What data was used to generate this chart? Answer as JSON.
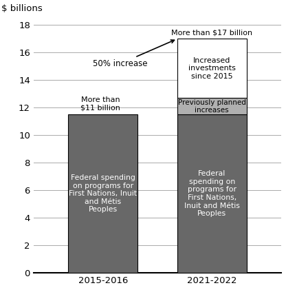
{
  "categories": [
    "2015-2016",
    "2021-2022"
  ],
  "bar1_total": 11.5,
  "bar2_base": 11.5,
  "bar2_planned": 1.2,
  "bar2_increased": 4.3,
  "color_dark": "#686868",
  "color_light_gray": "#b0b0b0",
  "color_white_bar": "#ffffff",
  "color_bar_edge": "#000000",
  "ylabel": "$ billions",
  "ylim": [
    0,
    18.5
  ],
  "yticks": [
    0,
    2,
    4,
    6,
    8,
    10,
    12,
    14,
    16,
    18
  ],
  "bar1_label": "Federal spending\non programs for\nFirst Nations, Inuit\nand Métis\nPeoples",
  "bar2_label": "Federal\nspending on\nprograms for\nFirst Nations,\nInuit and Métis\nPeoples",
  "bar1_annotation": "More than\n$11 billion",
  "bar2_annotation": "More than $17 billion",
  "increase_label": "50% increase",
  "planned_label": "Previously planned\nincreases",
  "increased_label": "Increased\ninvestments\nsince 2015",
  "background_color": "#ffffff",
  "text_color_dark": "#000000",
  "text_color_white": "#ffffff",
  "grid_color": "#aaaaaa"
}
